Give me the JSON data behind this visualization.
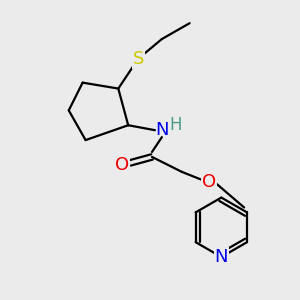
{
  "bg_color": "#ebebeb",
  "atom_colors": {
    "C": "#000000",
    "H": "#4a9a8a",
    "N": "#0000ee",
    "O": "#ee0000",
    "S": "#cccc00"
  },
  "bond_color": "#000000",
  "bond_width": 1.6,
  "figsize": [
    3.0,
    3.0
  ],
  "dpi": 100
}
